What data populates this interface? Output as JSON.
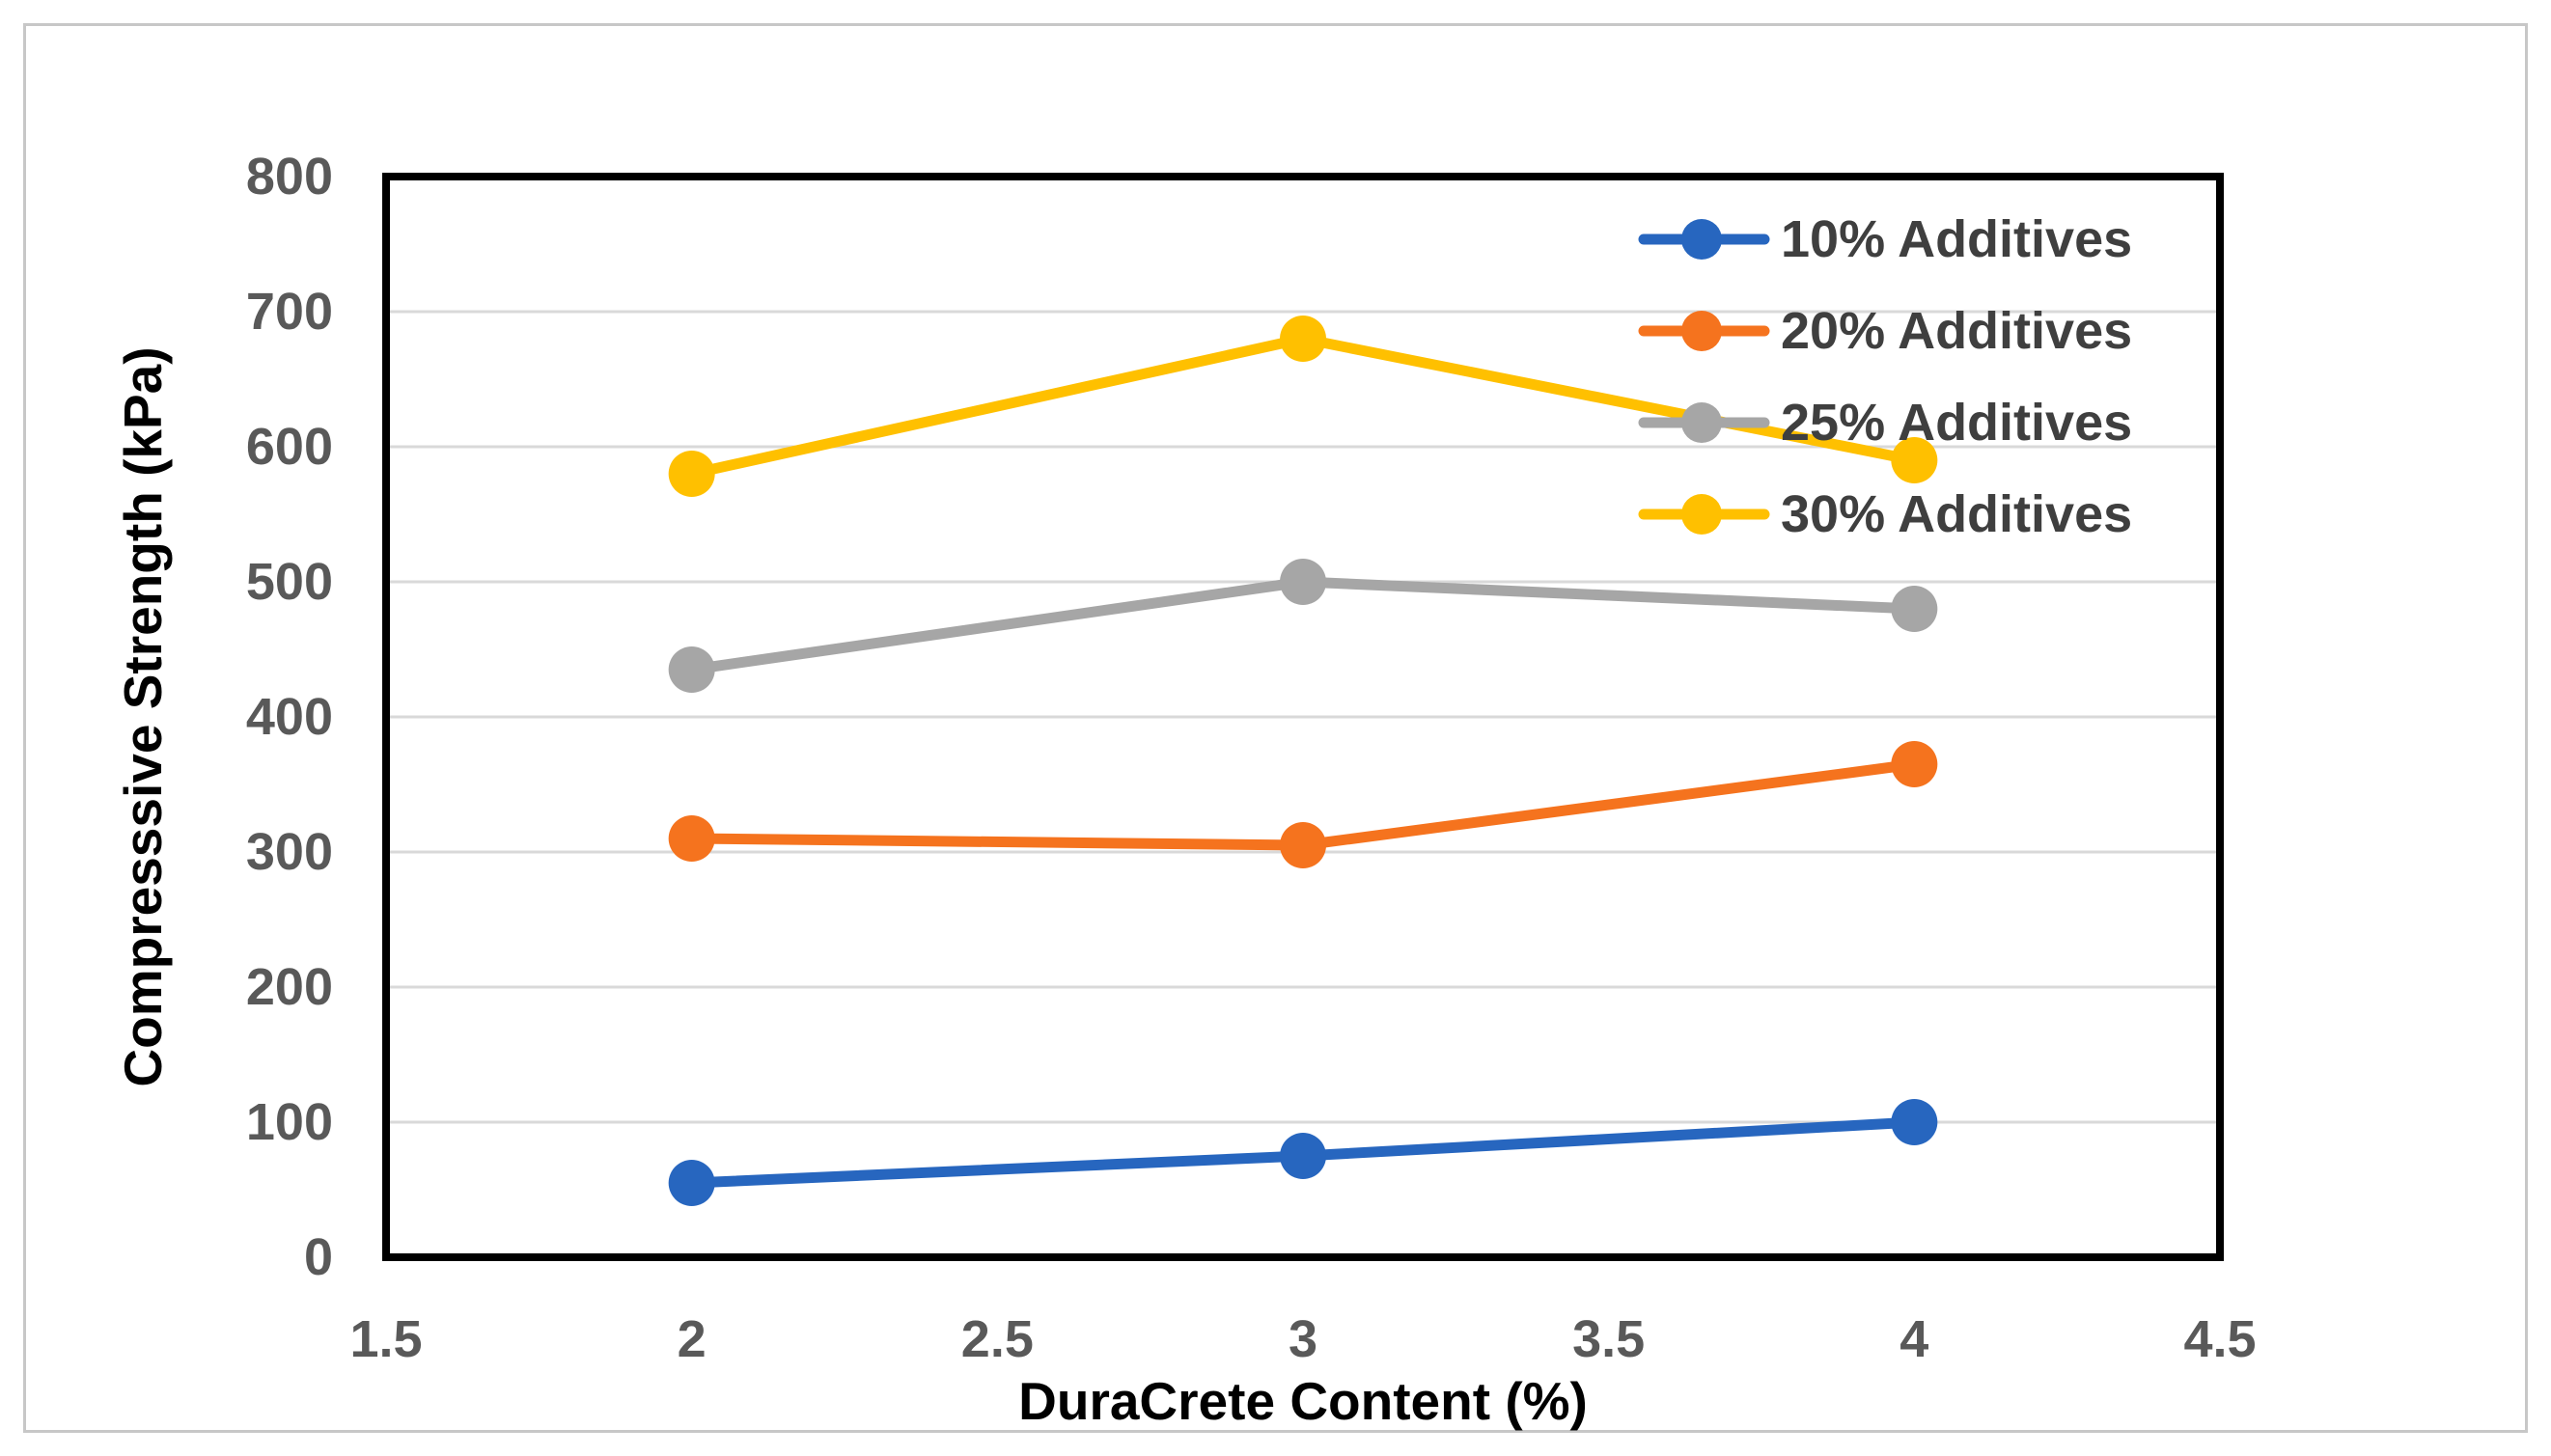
{
  "chart_data": {
    "type": "line",
    "title": "",
    "xlabel": "DuraCrete Content (%)",
    "ylabel": "Compresssive Strength (kPa)",
    "x": [
      2,
      3,
      4
    ],
    "series": [
      {
        "name": "10% Additives",
        "color": "#2766BF",
        "values": [
          55,
          75,
          100
        ]
      },
      {
        "name": "20% Additives",
        "color": "#F5731E",
        "values": [
          310,
          305,
          365
        ]
      },
      {
        "name": "25% Additives",
        "color": "#A6A6A6",
        "values": [
          435,
          500,
          480
        ]
      },
      {
        "name": "30% Additives",
        "color": "#FFC000",
        "values": [
          580,
          680,
          590
        ]
      }
    ],
    "xlim": [
      1.5,
      4.5
    ],
    "ylim": [
      0,
      800
    ],
    "x_ticks": [
      "1.5",
      "2",
      "2.5",
      "3",
      "3.5",
      "4",
      "4.5"
    ],
    "y_ticks": [
      0,
      100,
      200,
      300,
      400,
      500,
      600,
      700,
      800
    ],
    "grid": "horizontal",
    "legend_position": "inside-top-right",
    "marker": "circle"
  },
  "styles": {
    "background": "#FFFFFF",
    "frame_border": "#C7C7C7",
    "plot_border": "#000000",
    "gridline": "#D9D9D9",
    "tick_text": "#595959",
    "axis_title_text": "#000000",
    "legend_text": "#3F3F3F"
  }
}
